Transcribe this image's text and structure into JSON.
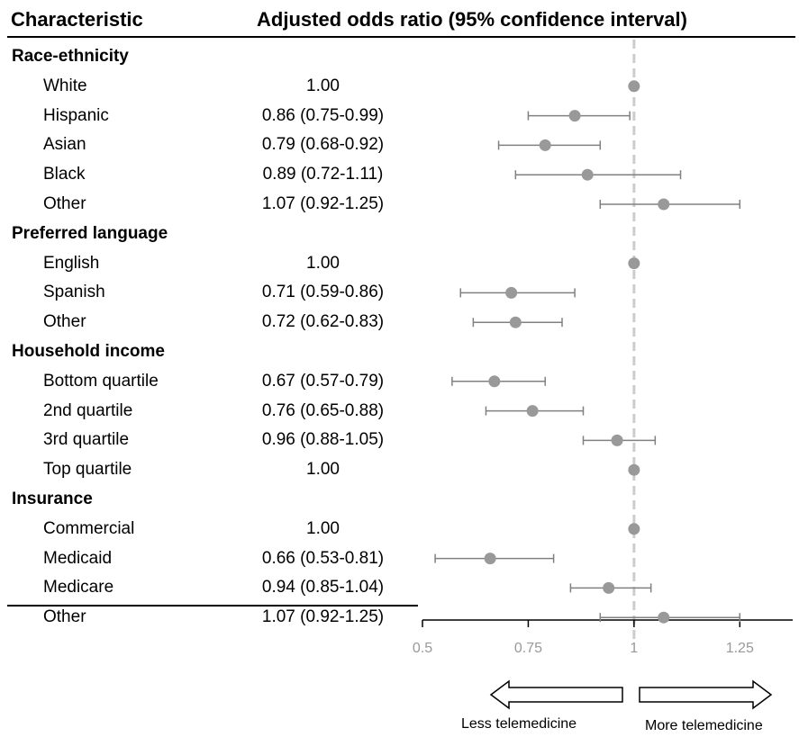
{
  "header": {
    "characteristic": "Characteristic",
    "or_title": "Adjusted odds ratio (95% confidence interval)"
  },
  "arrows": {
    "less": "Less telemedicine",
    "more": "More telemedicine"
  },
  "chart_data": {
    "type": "forest",
    "xlim": [
      0.5,
      1.375
    ],
    "x_ticks": [
      0.5,
      0.75,
      1,
      1.25
    ],
    "x_tick_labels": [
      "0.5",
      "0.75",
      "1",
      "1.25"
    ],
    "reference_line": 1,
    "rows": [
      {
        "kind": "category",
        "label": "Race-ethnicity"
      },
      {
        "kind": "item",
        "label": "White",
        "or_text": "1.00",
        "or": 1.0,
        "lo": null,
        "hi": null
      },
      {
        "kind": "item",
        "label": "Hispanic",
        "or_text": "0.86 (0.75-0.99)",
        "or": 0.86,
        "lo": 0.75,
        "hi": 0.99
      },
      {
        "kind": "item",
        "label": "Asian",
        "or_text": "0.79 (0.68-0.92)",
        "or": 0.79,
        "lo": 0.68,
        "hi": 0.92
      },
      {
        "kind": "item",
        "label": "Black",
        "or_text": "0.89 (0.72-1.11)",
        "or": 0.89,
        "lo": 0.72,
        "hi": 1.11
      },
      {
        "kind": "item",
        "label": "Other",
        "or_text": "1.07 (0.92-1.25)",
        "or": 1.07,
        "lo": 0.92,
        "hi": 1.25
      },
      {
        "kind": "category",
        "label": "Preferred language"
      },
      {
        "kind": "item",
        "label": "English",
        "or_text": "1.00",
        "or": 1.0,
        "lo": null,
        "hi": null
      },
      {
        "kind": "item",
        "label": "Spanish",
        "or_text": "0.71 (0.59-0.86)",
        "or": 0.71,
        "lo": 0.59,
        "hi": 0.86
      },
      {
        "kind": "item",
        "label": "Other",
        "or_text": "0.72 (0.62-0.83)",
        "or": 0.72,
        "lo": 0.62,
        "hi": 0.83
      },
      {
        "kind": "category",
        "label": "Household income"
      },
      {
        "kind": "item",
        "label": "Bottom quartile",
        "or_text": "0.67 (0.57-0.79)",
        "or": 0.67,
        "lo": 0.57,
        "hi": 0.79
      },
      {
        "kind": "item",
        "label": "2nd quartile",
        "or_text": "0.76 (0.65-0.88)",
        "or": 0.76,
        "lo": 0.65,
        "hi": 0.88
      },
      {
        "kind": "item",
        "label": "3rd quartile",
        "or_text": "0.96 (0.88-1.05)",
        "or": 0.96,
        "lo": 0.88,
        "hi": 1.05
      },
      {
        "kind": "item",
        "label": "Top quartile",
        "or_text": "1.00",
        "or": 1.0,
        "lo": null,
        "hi": null
      },
      {
        "kind": "category",
        "label": "Insurance"
      },
      {
        "kind": "item",
        "label": "Commercial",
        "or_text": "1.00",
        "or": 1.0,
        "lo": null,
        "hi": null
      },
      {
        "kind": "item",
        "label": "Medicaid",
        "or_text": "0.66 (0.53-0.81)",
        "or": 0.66,
        "lo": 0.53,
        "hi": 0.81
      },
      {
        "kind": "item",
        "label": "Medicare",
        "or_text": "0.94 (0.85-1.04)",
        "or": 0.94,
        "lo": 0.85,
        "hi": 1.04
      },
      {
        "kind": "item",
        "label": "Other",
        "or_text": "1.07 (0.92-1.25)",
        "or": 1.07,
        "lo": 0.92,
        "hi": 1.25
      }
    ],
    "colors": {
      "point": "#999999",
      "ci": "#808080",
      "reference": "#cccccc",
      "axis": "#000000",
      "tick_label": "#999999"
    }
  }
}
